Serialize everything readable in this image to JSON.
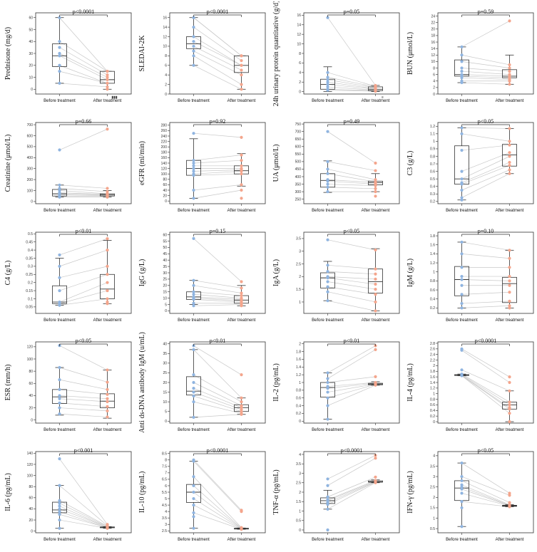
{
  "colors": {
    "before": "#8fb4e0",
    "after": "#f4a58c",
    "line": "#c8c8c8",
    "box": "#333333"
  },
  "charts": [
    {
      "ylabel": "Prednisone (mg/d)",
      "pval": "p<0.0001",
      "ylim": [
        -4,
        64
      ],
      "ticks": [
        0,
        10,
        20,
        30,
        40,
        50,
        60
      ],
      "categories": [
        "Before treatment",
        "After treatment"
      ],
      "before": {
        "min": 5,
        "q1": 19,
        "med": 28,
        "q3": 38,
        "max": 60,
        "points": [
          60,
          40,
          35,
          30,
          28,
          20,
          15,
          5
        ]
      },
      "after": {
        "min": 0,
        "q1": 5,
        "med": 8,
        "q3": 15,
        "max": 15,
        "points": [
          15,
          15,
          12,
          10,
          8,
          5,
          5,
          2,
          0
        ]
      },
      "extra_label": "▮▮▮"
    },
    {
      "ylabel": "SLEDAI-2K",
      "pval": "p<0.0001",
      "ylim": [
        0,
        17
      ],
      "ticks": [
        0,
        2,
        4,
        6,
        8,
        10,
        12,
        14,
        16
      ],
      "categories": [
        "Before treatment",
        "After treatment"
      ],
      "before": {
        "min": 6,
        "q1": 9.5,
        "med": 10.5,
        "q3": 12,
        "max": 16,
        "points": [
          16,
          16,
          14,
          12,
          11,
          10,
          9,
          8,
          6
        ]
      },
      "after": {
        "min": 1,
        "q1": 4.5,
        "med": 6,
        "q3": 8,
        "max": 8,
        "points": [
          8,
          8,
          7,
          6,
          6,
          5,
          4,
          2,
          1
        ]
      }
    },
    {
      "ylabel": "24h urinary protein quantitative (g/d)",
      "pval": "p=0.05",
      "ylim": [
        -0.5,
        16.5
      ],
      "ticks": [
        0,
        2,
        4,
        6,
        8,
        10,
        12,
        14,
        16
      ],
      "categories": [
        "Before treatment",
        "After treatment"
      ],
      "before": {
        "min": 0,
        "q1": 0.5,
        "med": 1.5,
        "q3": 2.6,
        "max": 5.2,
        "points": [
          15.5,
          4,
          3,
          2.5,
          2,
          1.5,
          1,
          0.5,
          0.3
        ]
      },
      "after": {
        "min": 0,
        "q1": 0.2,
        "med": 0.5,
        "q3": 1,
        "max": 1.3,
        "points": [
          1.3,
          1.1,
          1,
          0.8,
          0.6,
          0.5,
          0.3,
          0.2,
          0.1
        ]
      },
      "extra_label": "≡"
    },
    {
      "ylabel": "BUN (μmol/L)",
      "pval": "p=0.59",
      "ylim": [
        0,
        25
      ],
      "ticks": [
        0,
        2,
        4,
        6,
        8,
        10,
        12,
        14,
        16,
        18,
        20,
        22,
        24
      ],
      "categories": [
        "Before treatment",
        "After treatment"
      ],
      "before": {
        "min": 3.5,
        "q1": 5.5,
        "med": 6,
        "q3": 10.5,
        "max": 14.5,
        "points": [
          14.5,
          12,
          10,
          8,
          7,
          6,
          5.5,
          5,
          4,
          3.5
        ]
      },
      "after": {
        "min": 3,
        "q1": 5,
        "med": 5.5,
        "q3": 7.5,
        "max": 12,
        "points": [
          22.5,
          9,
          8,
          7,
          6,
          5.5,
          5,
          4.5,
          4,
          3
        ]
      }
    },
    {
      "ylabel": "Creatinine (μmol/L)",
      "pval": "p=0.66",
      "ylim": [
        -20,
        720
      ],
      "ticks": [
        0,
        100,
        200,
        300,
        400,
        500,
        600,
        700
      ],
      "categories": [
        "Before treatment",
        "After treatment"
      ],
      "before": {
        "min": 40,
        "q1": 50,
        "med": 70,
        "q3": 110,
        "max": 150,
        "points": [
          470,
          150,
          120,
          100,
          80,
          70,
          60,
          50,
          40
        ]
      },
      "after": {
        "min": 40,
        "q1": 50,
        "med": 60,
        "q3": 70,
        "max": 100,
        "points": [
          660,
          120,
          90,
          70,
          65,
          60,
          55,
          50,
          40
        ]
      }
    },
    {
      "ylabel": "eGFR (ml/min)",
      "pval": "p=0.92",
      "ylim": [
        -10,
        290
      ],
      "ticks": [
        0,
        20,
        40,
        60,
        80,
        100,
        120,
        140,
        160,
        180,
        200,
        220,
        240,
        260,
        280
      ],
      "categories": [
        "Before treatment",
        "After treatment"
      ],
      "before": {
        "min": 10,
        "q1": 95,
        "med": 120,
        "q3": 150,
        "max": 230,
        "points": [
          250,
          150,
          140,
          130,
          120,
          110,
          100,
          95,
          40,
          10
        ]
      },
      "after": {
        "min": 55,
        "q1": 100,
        "med": 112,
        "q3": 130,
        "max": 175,
        "points": [
          235,
          170,
          150,
          130,
          120,
          115,
          110,
          100,
          60,
          40,
          10
        ]
      }
    },
    {
      "ylabel": "UA (μmol/L)",
      "pval": "p=0.49",
      "ylim": [
        220,
        760
      ],
      "ticks": [
        250,
        300,
        350,
        400,
        450,
        500,
        550,
        600,
        650,
        700,
        750
      ],
      "categories": [
        "Before treatment",
        "After treatment"
      ],
      "before": {
        "min": 295,
        "q1": 330,
        "med": 375,
        "q3": 420,
        "max": 505,
        "points": [
          700,
          500,
          450,
          420,
          380,
          370,
          350,
          330,
          300
        ]
      },
      "after": {
        "min": 300,
        "q1": 345,
        "med": 360,
        "q3": 370,
        "max": 420,
        "points": [
          490,
          440,
          380,
          365,
          360,
          350,
          340,
          320,
          300,
          270
        ]
      }
    },
    {
      "ylabel": "C3 (g/L)",
      "pval": "p<0.05",
      "ylim": [
        0.17,
        1.25
      ],
      "ticks": [
        0.2,
        0.3,
        0.4,
        0.5,
        0.6,
        0.7,
        0.8,
        0.9,
        1.0,
        1.1,
        1.2
      ],
      "categories": [
        "Before treatment",
        "After treatment"
      ],
      "before": {
        "min": 0.22,
        "q1": 0.43,
        "med": 0.5,
        "q3": 0.94,
        "max": 1.18,
        "points": [
          1.18,
          1.1,
          0.88,
          0.6,
          0.5,
          0.45,
          0.43,
          0.35,
          0.25,
          0.22
        ]
      },
      "after": {
        "min": 0.57,
        "q1": 0.67,
        "med": 0.82,
        "q3": 0.96,
        "max": 1.17,
        "points": [
          1.17,
          1.0,
          0.95,
          0.85,
          0.8,
          0.72,
          0.68,
          0.62,
          0.57
        ]
      }
    },
    {
      "ylabel": "C4 (g/L)",
      "pval": "p<0.01",
      "ylim": [
        0.01,
        0.51
      ],
      "ticks": [
        0.05,
        0.1,
        0.15,
        0.2,
        0.25,
        0.3,
        0.35,
        0.4,
        0.45,
        0.5
      ],
      "categories": [
        "Before treatment",
        "After treatment"
      ],
      "before": {
        "min": 0.06,
        "q1": 0.07,
        "med": 0.08,
        "q3": 0.18,
        "max": 0.35,
        "points": [
          0.37,
          0.3,
          0.23,
          0.15,
          0.08,
          0.07,
          0.06
        ]
      },
      "after": {
        "min": 0.07,
        "q1": 0.1,
        "med": 0.16,
        "q3": 0.25,
        "max": 0.46,
        "points": [
          0.47,
          0.4,
          0.3,
          0.25,
          0.2,
          0.15,
          0.1,
          0.08,
          0.07
        ]
      }
    },
    {
      "ylabel": "IgG (g/L)",
      "pval": "p=0.15",
      "ylim": [
        -2,
        62
      ],
      "ticks": [
        0,
        5,
        10,
        15,
        20,
        25,
        30,
        35,
        40,
        45,
        50,
        55,
        60
      ],
      "categories": [
        "Before treatment",
        "After treatment"
      ],
      "before": {
        "min": 5,
        "q1": 9,
        "med": 11,
        "q3": 15,
        "max": 24,
        "points": [
          57,
          24,
          20,
          15,
          13,
          11,
          10,
          9,
          6,
          4
        ]
      },
      "after": {
        "min": 4,
        "q1": 6,
        "med": 8.5,
        "q3": 12,
        "max": 20,
        "points": [
          23,
          18,
          14,
          12,
          10,
          9,
          8,
          7,
          6,
          5,
          4
        ]
      }
    },
    {
      "ylabel": "IgA (g/L)",
      "pval": "p<0.05",
      "ylim": [
        0.55,
        3.75
      ],
      "ticks": [
        1.0,
        1.5,
        2.0,
        2.5,
        3.0,
        3.5
      ],
      "categories": [
        "Before treatment",
        "After treatment"
      ],
      "before": {
        "min": 1.05,
        "q1": 1.55,
        "med": 1.95,
        "q3": 2.15,
        "max": 2.6,
        "points": [
          3.45,
          2.45,
          2.2,
          2.0,
          1.95,
          1.8,
          1.6,
          1.4,
          1.05
        ]
      },
      "after": {
        "min": 0.65,
        "q1": 1.35,
        "med": 1.8,
        "q3": 2.3,
        "max": 3.1,
        "points": [
          3.05,
          2.3,
          2.1,
          1.9,
          1.7,
          1.5,
          1.3,
          1.0,
          0.65
        ]
      }
    },
    {
      "ylabel": "IgM (g/L)",
      "pval": "p=0.10",
      "ylim": [
        0.08,
        1.88
      ],
      "ticks": [
        0.2,
        0.4,
        0.6,
        0.8,
        1.0,
        1.2,
        1.4,
        1.6,
        1.8
      ],
      "categories": [
        "Before treatment",
        "After treatment"
      ],
      "before": {
        "min": 0.2,
        "q1": 0.47,
        "med": 0.83,
        "q3": 1.12,
        "max": 1.66,
        "points": [
          1.66,
          1.4,
          1.1,
          0.9,
          0.83,
          0.7,
          0.5,
          0.3,
          0.2
        ]
      },
      "after": {
        "min": 0.2,
        "q1": 0.32,
        "med": 0.74,
        "q3": 0.88,
        "max": 1.48,
        "points": [
          1.48,
          1.3,
          1.1,
          0.9,
          0.8,
          0.7,
          0.55,
          0.35,
          0.25,
          0.2
        ]
      }
    },
    {
      "ylabel": "ESR (mm/h)",
      "pval": "p<0.05",
      "ylim": [
        -5,
        128
      ],
      "ticks": [
        0,
        20,
        40,
        60,
        80,
        100,
        120
      ],
      "categories": [
        "Before treatment",
        "After treatment"
      ],
      "before": {
        "min": 8,
        "q1": 27,
        "med": 38,
        "q3": 50,
        "max": 86,
        "points": [
          122,
          86,
          66,
          50,
          40,
          35,
          28,
          20,
          10
        ]
      },
      "after": {
        "min": 3,
        "q1": 20,
        "med": 31,
        "q3": 43,
        "max": 82,
        "points": [
          82,
          62,
          50,
          42,
          35,
          30,
          22,
          15,
          5
        ]
      }
    },
    {
      "ylabel": "Anti ds-DNA antibody IgM (u/mL)",
      "pval": "p<0.01",
      "ylim": [
        -1,
        41
      ],
      "ticks": [
        0,
        5,
        10,
        15,
        20,
        25,
        30,
        35,
        40
      ],
      "categories": [
        "Before treatment",
        "After treatment"
      ],
      "before": {
        "min": 2,
        "q1": 13.5,
        "med": 15.5,
        "q3": 23,
        "max": 37,
        "points": [
          39,
          37,
          24,
          20,
          17,
          15,
          13,
          10,
          2
        ]
      },
      "after": {
        "min": 3.5,
        "q1": 5,
        "med": 7,
        "q3": 8.5,
        "max": 12,
        "points": [
          24,
          12,
          10,
          8,
          7,
          6,
          5,
          4,
          3.5
        ]
      }
    },
    {
      "ylabel": "IL-2 (pg/mL)",
      "pval": "p<0.01",
      "ylim": [
        -0.05,
        2.05
      ],
      "ticks": [
        0,
        0.2,
        0.4,
        0.6,
        0.8,
        1.0,
        1.2,
        1.4,
        1.6,
        1.8,
        2.0
      ],
      "categories": [
        "Before treatment",
        "After treatment"
      ],
      "before": {
        "min": 0.05,
        "q1": 0.62,
        "med": 0.87,
        "q3": 1.0,
        "max": 1.25,
        "points": [
          1.25,
          1.1,
          1.0,
          0.9,
          0.85,
          0.75,
          0.6,
          0.4,
          0.05
        ]
      },
      "after": {
        "min": 0.93,
        "q1": 0.94,
        "med": 0.96,
        "q3": 0.98,
        "max": 1.02,
        "points": [
          1.95,
          1.85,
          1.15,
          1.0,
          0.98,
          0.96,
          0.95,
          0.93
        ]
      }
    },
    {
      "ylabel": "IL-4 (pg/mL)",
      "pval": "p<0.0001",
      "ylim": [
        -0.05,
        2.85
      ],
      "ticks": [
        0,
        0.2,
        0.4,
        0.6,
        0.8,
        1.0,
        1.2,
        1.4,
        1.6,
        1.8,
        2.0,
        2.2,
        2.4,
        2.6,
        2.8
      ],
      "categories": [
        "Before treatment",
        "After treatment"
      ],
      "before": {
        "min": 1.64,
        "q1": 1.65,
        "med": 1.66,
        "q3": 1.68,
        "max": 1.7,
        "points": [
          2.6,
          2.55,
          1.85,
          1.7,
          1.68,
          1.66,
          1.65,
          1.64
        ]
      },
      "after": {
        "min": 0,
        "q1": 0.45,
        "med": 0.6,
        "q3": 0.7,
        "max": 1.1,
        "points": [
          1.6,
          1.4,
          1.1,
          0.7,
          0.6,
          0.5,
          0.45,
          0.3,
          0
        ]
      }
    },
    {
      "ylabel": "IL-6 (pg/mL)",
      "pval": "p<0.001",
      "ylim": [
        -3,
        143
      ],
      "ticks": [
        0,
        20,
        40,
        60,
        80,
        100,
        120,
        140
      ],
      "categories": [
        "Before treatment",
        "After treatment"
      ],
      "before": {
        "min": 5,
        "q1": 33,
        "med": 38,
        "q3": 52,
        "max": 82,
        "points": [
          130,
          82,
          55,
          50,
          45,
          40,
          35,
          30,
          20,
          5
        ]
      },
      "after": {
        "min": 5,
        "q1": 6,
        "med": 7,
        "q3": 7.5,
        "max": 8,
        "points": [
          12,
          10,
          9,
          8,
          7,
          7,
          6,
          6,
          5
        ]
      }
    },
    {
      "ylabel": "IL-10 (pg/mL)",
      "pval": "p<0.0001",
      "ylim": [
        2.35,
        8.65
      ],
      "ticks": [
        2.5,
        3.0,
        3.5,
        4.0,
        4.5,
        5.0,
        5.5,
        6.0,
        6.5,
        7.0,
        7.5,
        8.0,
        8.5
      ],
      "categories": [
        "Before treatment",
        "After treatment"
      ],
      "before": {
        "min": 2.7,
        "q1": 4.7,
        "med": 5.5,
        "q3": 6.1,
        "max": 7.9,
        "points": [
          8.0,
          7.9,
          6.7,
          6.0,
          5.5,
          5.0,
          4.5,
          3.9,
          3.6,
          2.7
        ]
      },
      "after": {
        "min": 2.62,
        "q1": 2.64,
        "med": 2.66,
        "q3": 2.7,
        "max": 2.72,
        "points": [
          4.1,
          4.0,
          2.75,
          2.7,
          2.68,
          2.66,
          2.64,
          2.62
        ]
      }
    },
    {
      "ylabel": "TNF-α (pg/mL)",
      "pval": "p<0.0001",
      "ylim": [
        -0.15,
        4.15
      ],
      "ticks": [
        0,
        0.5,
        1.0,
        1.5,
        2.0,
        2.5,
        3.0,
        3.5,
        4.0
      ],
      "categories": [
        "Before treatment",
        "After treatment"
      ],
      "before": {
        "min": 1.1,
        "q1": 1.4,
        "med": 1.55,
        "q3": 1.7,
        "max": 2.1,
        "points": [
          2.7,
          2.35,
          1.75,
          1.6,
          1.55,
          1.45,
          1.35,
          1.1,
          0
        ]
      },
      "after": {
        "min": 2.5,
        "q1": 2.53,
        "med": 2.55,
        "q3": 2.6,
        "max": 2.65,
        "points": [
          3.95,
          3.8,
          2.8,
          2.62,
          2.58,
          2.55,
          2.53,
          2.5
        ]
      }
    },
    {
      "ylabel": "IFN-γ (pg/mL)",
      "pval": "p<0.05",
      "ylim": [
        0.3,
        4.2
      ],
      "ticks": [
        0.5,
        1.0,
        1.5,
        2.0,
        2.5,
        3.0,
        3.5,
        4.0
      ],
      "categories": [
        "Before treatment",
        "After treatment"
      ],
      "before": {
        "min": 0.6,
        "q1": 1.85,
        "med": 2.45,
        "q3": 2.8,
        "max": 3.65,
        "points": [
          3.65,
          3.0,
          2.8,
          2.6,
          2.5,
          2.4,
          2.2,
          1.8,
          1.5,
          0.6
        ]
      },
      "after": {
        "min": 1.55,
        "q1": 1.57,
        "med": 1.6,
        "q3": 1.62,
        "max": 1.65,
        "points": [
          2.2,
          2.1,
          1.75,
          1.65,
          1.62,
          1.6,
          1.58,
          1.55
        ]
      }
    }
  ]
}
